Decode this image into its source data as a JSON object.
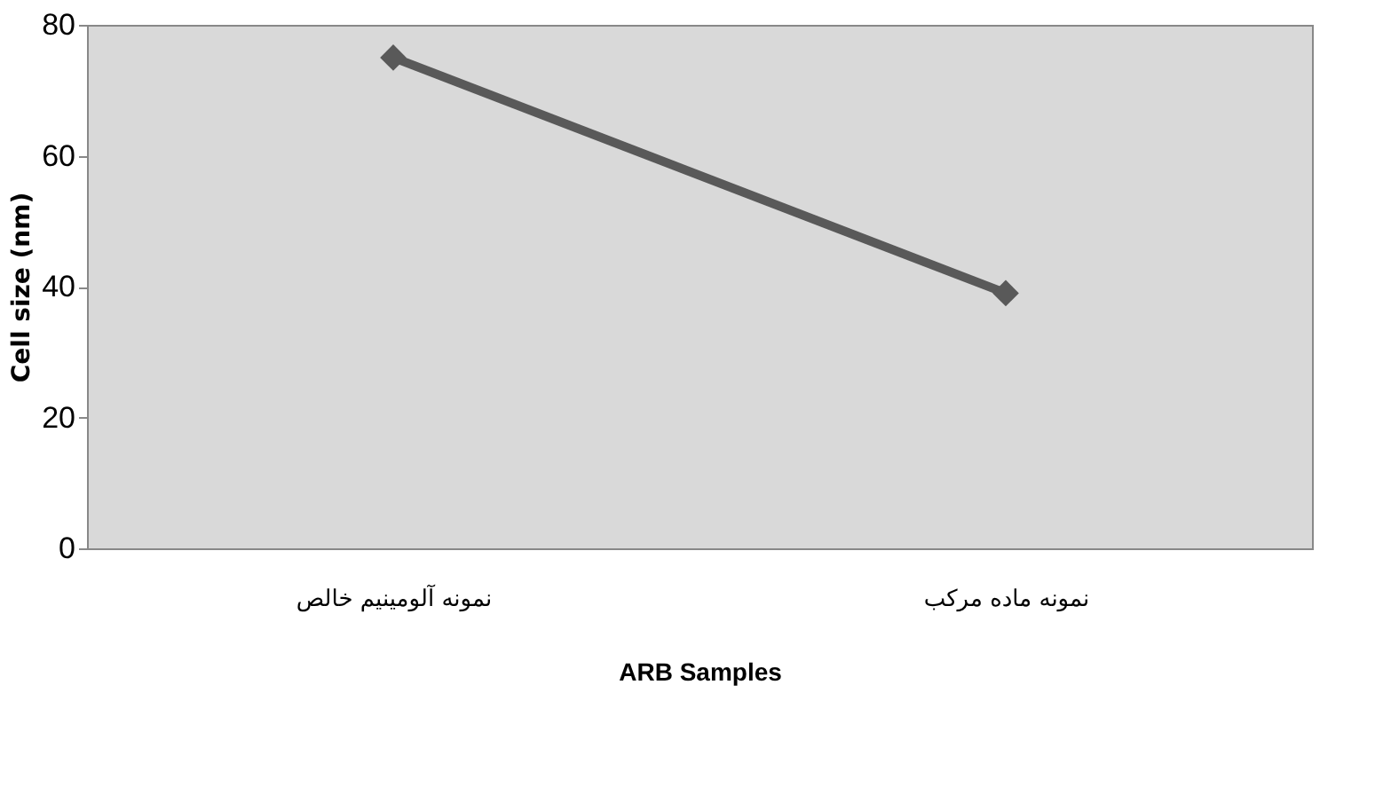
{
  "chart_data": {
    "type": "line",
    "xlabel": "ARB Samples",
    "ylabel": "Cell size (nm)",
    "categories": [
      "نمونه آلومینیم خالص",
      "نمونه ماده مرکب"
    ],
    "series": [
      {
        "color": "#595959",
        "values": [
          75,
          39
        ]
      }
    ],
    "ylim": [
      0,
      80
    ],
    "yticks": [
      0,
      20,
      40,
      60,
      80
    ],
    "grid": false,
    "legend": false,
    "marker": "diamond",
    "line_style": "solid"
  }
}
